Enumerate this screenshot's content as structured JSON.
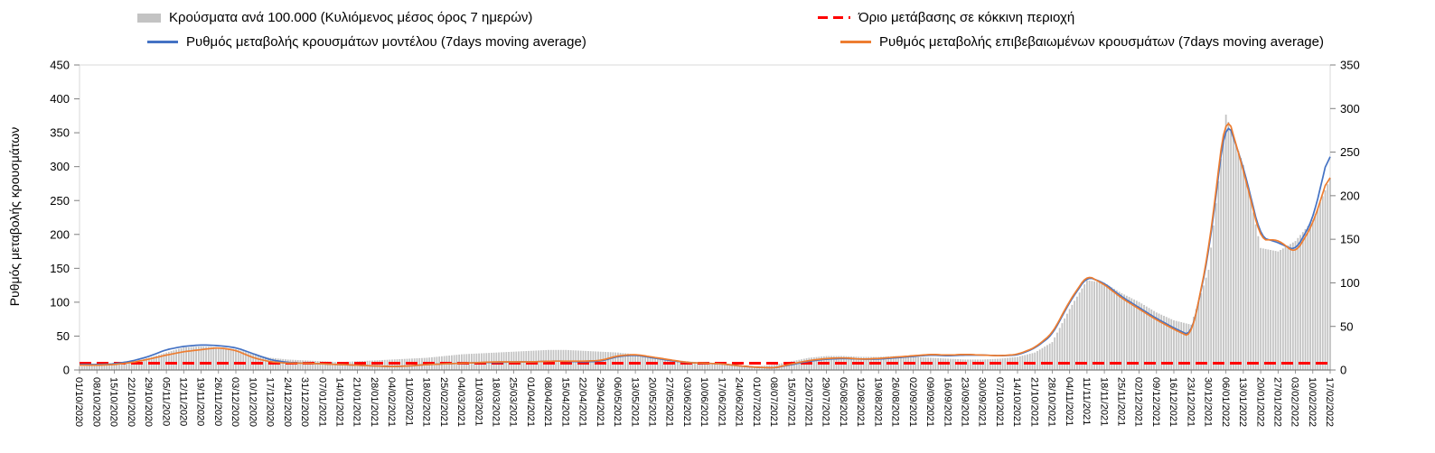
{
  "legend": {
    "bars": "Κρούσματα ανά 100.000 (Κυλιόμενος μέσος όρος 7 ημερών)",
    "threshold": "Όριο μετάβασης σε κόκκινη περιοχή",
    "model": "Ρυθμός μεταβολής κρουσμάτων μοντέλου (7days moving average)",
    "confirmed": "Ρυθμός μεταβολής επιβεβαιωμένων κρουσμάτων (7days moving average)"
  },
  "axes": {
    "left_label": "Ρυθμός μεταβολής κρουσμάτων",
    "left_ticks": [
      0,
      50,
      100,
      150,
      200,
      250,
      300,
      350,
      400,
      450
    ],
    "right_ticks": [
      0,
      50,
      100,
      150,
      200,
      250,
      300,
      350
    ]
  },
  "colors": {
    "bar": "#C3C3C3",
    "model_line": "#4472C4",
    "confirmed_line": "#ED7D31",
    "threshold": "#FF0000",
    "grid": "#D9D9D9",
    "axis": "#7F7F7F"
  },
  "chart_data": {
    "type": "combo",
    "left_ylim": [
      0,
      450
    ],
    "right_ylim": [
      0,
      350
    ],
    "categories": [
      "01/10/2020",
      "08/10/2020",
      "15/10/2020",
      "22/10/2020",
      "29/10/2020",
      "05/11/2020",
      "12/11/2020",
      "19/11/2020",
      "26/11/2020",
      "03/12/2020",
      "10/12/2020",
      "17/12/2020",
      "24/12/2020",
      "31/12/2020",
      "07/01/2021",
      "14/01/2021",
      "21/01/2021",
      "28/01/2021",
      "04/02/2021",
      "11/02/2021",
      "18/02/2021",
      "25/02/2021",
      "04/03/2021",
      "11/03/2021",
      "18/03/2021",
      "25/03/2021",
      "01/04/2021",
      "08/04/2021",
      "15/04/2021",
      "22/04/2021",
      "29/04/2021",
      "06/05/2021",
      "13/05/2021",
      "20/05/2021",
      "27/05/2021",
      "03/06/2021",
      "10/06/2021",
      "17/06/2021",
      "24/06/2021",
      "01/07/2021",
      "08/07/2021",
      "15/07/2021",
      "22/07/2021",
      "29/07/2021",
      "05/08/2021",
      "12/08/2021",
      "19/08/2021",
      "26/08/2021",
      "02/09/2021",
      "09/09/2021",
      "16/09/2021",
      "23/09/2021",
      "30/09/2021",
      "07/10/2021",
      "14/10/2021",
      "21/10/2021",
      "28/10/2021",
      "04/11/2021",
      "11/11/2021",
      "18/11/2021",
      "25/11/2021",
      "02/12/2021",
      "09/12/2021",
      "16/12/2021",
      "23/12/2021",
      "30/12/2021",
      "06/01/2022",
      "13/01/2022",
      "20/01/2022",
      "27/01/2022",
      "03/02/2022",
      "10/02/2022",
      "17/02/2022"
    ],
    "series": [
      {
        "key": "cases",
        "name": "Κρούσματα ανά 100.000 (Κυλιόμενος μέσος όρος 7 ημερών)",
        "type": "bar",
        "axis": "right",
        "values": [
          4,
          5,
          6,
          9,
          14,
          20,
          26,
          27,
          26,
          24,
          18,
          14,
          12,
          11,
          10,
          9,
          10,
          11,
          12,
          13,
          14,
          16,
          18,
          19,
          20,
          21,
          22,
          23,
          23,
          22,
          21,
          20,
          18,
          15,
          12,
          10,
          8,
          6,
          5,
          4,
          6,
          10,
          14,
          16,
          16,
          15,
          15,
          16,
          15,
          14,
          13,
          12,
          12,
          13,
          15,
          20,
          32,
          70,
          103,
          100,
          88,
          78,
          66,
          57,
          52,
          115,
          293,
          235,
          140,
          136,
          148,
          172,
          220
        ]
      },
      {
        "key": "model",
        "name": "Ρυθμός μεταβολής κρουσμάτων μοντέλου (7days moving average)",
        "type": "line",
        "axis": "left",
        "color": "#4472C4",
        "values": [
          8,
          8,
          9,
          13,
          20,
          30,
          35,
          37,
          36,
          33,
          24,
          15,
          11,
          10,
          9,
          8,
          7,
          6,
          5,
          6,
          8,
          9,
          10,
          11,
          11,
          12,
          12,
          13,
          13,
          12,
          13,
          20,
          22,
          18,
          14,
          11,
          10,
          9,
          6,
          4,
          3,
          8,
          13,
          16,
          17,
          16,
          16,
          18,
          20,
          22,
          21,
          22,
          22,
          21,
          22,
          32,
          52,
          100,
          138,
          128,
          108,
          92,
          76,
          62,
          50,
          170,
          375,
          300,
          196,
          188,
          176,
          222,
          330
        ]
      },
      {
        "key": "confirmed",
        "name": "Ρυθμός μεταβολής επιβεβαιωμένων κρουσμάτων (7days moving average)",
        "type": "line",
        "axis": "left",
        "color": "#ED7D31",
        "values": [
          7,
          7,
          8,
          11,
          16,
          22,
          27,
          30,
          33,
          29,
          18,
          12,
          10,
          10,
          9,
          8,
          7,
          6,
          5,
          6,
          8,
          9,
          10,
          11,
          12,
          12,
          12,
          13,
          13,
          13,
          14,
          21,
          23,
          19,
          15,
          11,
          10,
          9,
          6,
          4,
          3,
          9,
          14,
          17,
          18,
          16,
          17,
          19,
          21,
          23,
          22,
          23,
          22,
          21,
          23,
          33,
          54,
          102,
          140,
          126,
          106,
          90,
          74,
          60,
          48,
          175,
          385,
          295,
          192,
          192,
          172,
          215,
          295
        ]
      },
      {
        "key": "threshold",
        "name": "Όριο μετάβασης σε κόκκινη περιοχή",
        "type": "constant-line",
        "style": "dashed",
        "axis": "left",
        "color": "#FF0000",
        "value": 10
      }
    ]
  }
}
